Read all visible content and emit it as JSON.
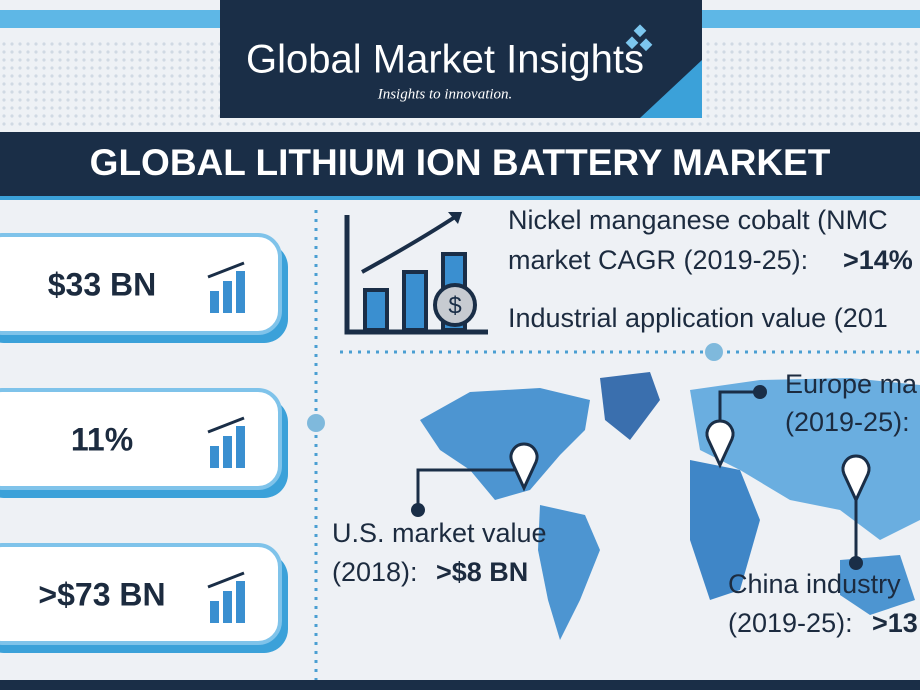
{
  "logo": {
    "name": "Global Market Insights",
    "tagline": "Insights to innovation."
  },
  "title": "GLOBAL LITHIUM ION BATTERY MARKET",
  "stats": [
    "$33 BN",
    "11%",
    ">$73 BN"
  ],
  "nmc": {
    "line1": "Nickel manganese cobalt (NMC",
    "line2": "market CAGR (2019-25):",
    "value": ">14%"
  },
  "industrial": "Industrial application value (201",
  "europe": {
    "line1": "Europe ma",
    "line2": "(2019-25):"
  },
  "us": {
    "line1": "U.S. market value",
    "line2": "(2018):",
    "value": ">$8 BN"
  },
  "china": {
    "line1": "China industry",
    "line2": "(2019-25):",
    "value": ">13"
  }
}
